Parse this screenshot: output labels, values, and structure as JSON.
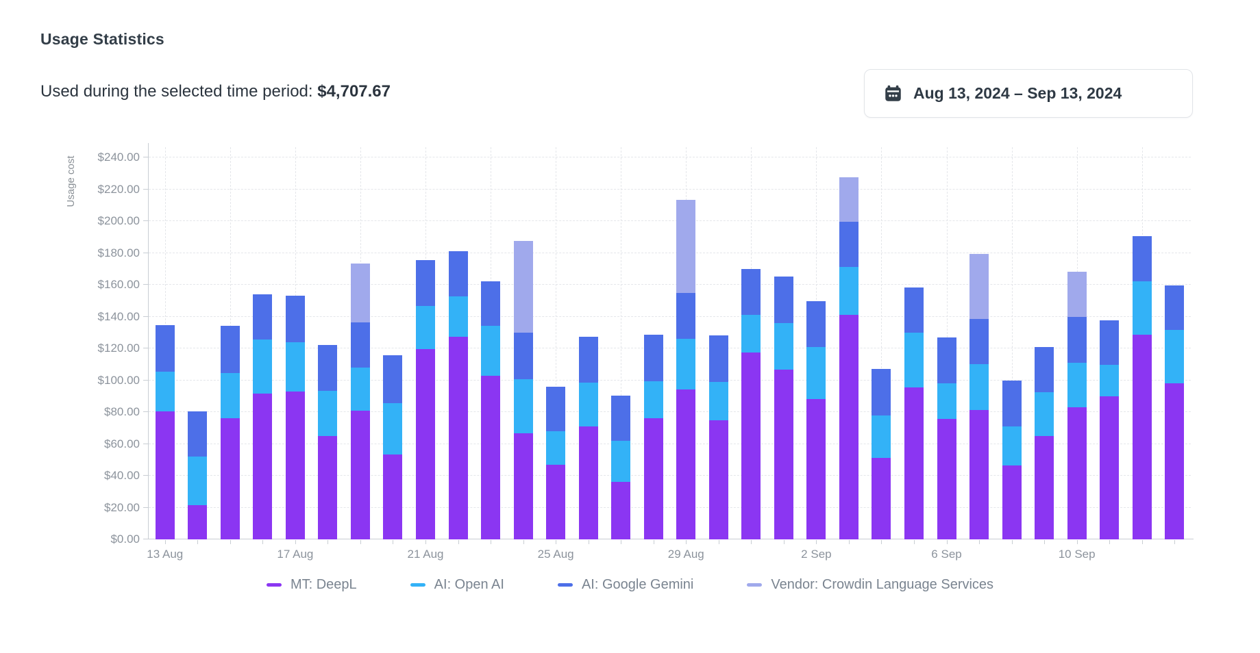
{
  "header": {
    "title": "Usage Statistics",
    "subtitle_label": "Used during the selected time period:",
    "subtitle_amount": "$4,707.67",
    "date_range": "Aug 13, 2024 – Sep 13, 2024",
    "calendar_icon": "calendar",
    "icon_color": "#333e48"
  },
  "chart_data": {
    "type": "bar",
    "stacked": true,
    "title": "",
    "xlabel": "",
    "ylabel": "Usage cost",
    "ylim": [
      0,
      240
    ],
    "ytick_step": 20,
    "ytick_prefix": "$",
    "grid": true,
    "legend_position": "bottom",
    "categories": [
      "13 Aug",
      "14 Aug",
      "15 Aug",
      "16 Aug",
      "17 Aug",
      "18 Aug",
      "19 Aug",
      "20 Aug",
      "21 Aug",
      "22 Aug",
      "23 Aug",
      "24 Aug",
      "25 Aug",
      "26 Aug",
      "27 Aug",
      "28 Aug",
      "29 Aug",
      "30 Aug",
      "31 Aug",
      "1 Sep",
      "2 Sep",
      "3 Sep",
      "4 Sep",
      "5 Sep",
      "6 Sep",
      "7 Sep",
      "8 Sep",
      "9 Sep",
      "10 Sep",
      "11 Sep",
      "12 Sep",
      "13 Sep"
    ],
    "xtick_labels_shown": [
      "13 Aug",
      "17 Aug",
      "21 Aug",
      "25 Aug",
      "29 Aug",
      "2 Sep",
      "6 Sep",
      "10 Sep"
    ],
    "series": [
      {
        "name": "MT: DeepL",
        "color": "#8b36f2",
        "values": [
          80.5,
          21.5,
          76,
          91.5,
          93,
          65,
          81,
          53.5,
          119.5,
          127.5,
          103,
          66.5,
          47,
          71,
          36,
          76,
          94,
          75,
          117.5,
          106.5,
          88,
          141,
          51,
          95.5,
          75.5,
          81.5,
          46.5,
          65,
          83,
          90,
          128.5,
          98
        ]
      },
      {
        "name": "AI: Open AI",
        "color": "#33b2f7",
        "values": [
          25,
          30.5,
          28.5,
          34,
          31,
          28.5,
          27,
          32,
          27,
          25,
          31,
          34,
          21,
          27.5,
          26,
          23.5,
          32,
          24,
          23.5,
          29.5,
          33,
          30,
          27,
          34.5,
          22.5,
          28.5,
          24.5,
          27.5,
          28,
          19.5,
          33.5,
          33.5
        ]
      },
      {
        "name": "AI: Google Gemini",
        "color": "#4d6fe8",
        "values": [
          29,
          28.5,
          29.5,
          28.5,
          29,
          28.5,
          28.5,
          30,
          29,
          28.5,
          28,
          29.5,
          28,
          29,
          28.5,
          29,
          29,
          29,
          29,
          29,
          28.5,
          28.5,
          29,
          28.5,
          29,
          28.5,
          29,
          28.5,
          29,
          28,
          28.5,
          28
        ]
      },
      {
        "name": "Vendor: Crowdin Language Services",
        "color": "#a0a9ec",
        "values": [
          0,
          0,
          0,
          0,
          0,
          0,
          37,
          0,
          0,
          0,
          0,
          57.5,
          0,
          0,
          0,
          0,
          58.5,
          0,
          0,
          0,
          0,
          28,
          0,
          0,
          0,
          41,
          0,
          0,
          28,
          0,
          0,
          0
        ]
      }
    ]
  }
}
